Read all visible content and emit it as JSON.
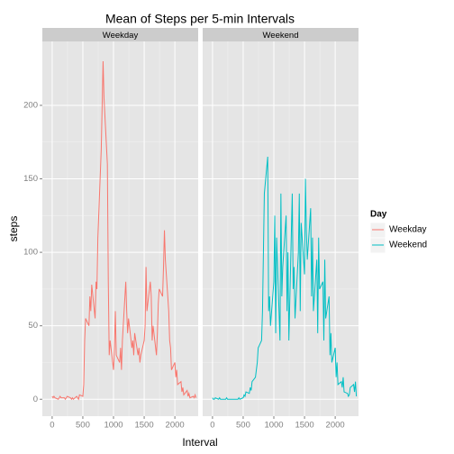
{
  "chart_data": {
    "type": "line",
    "title": "Mean of Steps per 5-min Intervals",
    "xlabel": "Interval",
    "ylabel": "steps",
    "legend_title": "Day",
    "legend": "right",
    "grid": true,
    "xlim": [
      -160,
      2380
    ],
    "ylim": [
      -11.5,
      243.5
    ],
    "xticks": [
      0,
      500,
      1000,
      1500,
      2000
    ],
    "yticks": [
      0,
      50,
      100,
      150,
      200
    ],
    "x": [
      0,
      15,
      30,
      45,
      100,
      115,
      130,
      145,
      200,
      215,
      230,
      245,
      300,
      315,
      330,
      345,
      400,
      415,
      430,
      445,
      500,
      515,
      530,
      545,
      600,
      615,
      630,
      645,
      700,
      715,
      730,
      745,
      800,
      815,
      830,
      845,
      900,
      915,
      930,
      945,
      1000,
      1015,
      1030,
      1045,
      1100,
      1115,
      1130,
      1145,
      1200,
      1215,
      1230,
      1245,
      1300,
      1315,
      1330,
      1345,
      1400,
      1415,
      1430,
      1445,
      1500,
      1515,
      1530,
      1545,
      1600,
      1615,
      1630,
      1645,
      1700,
      1715,
      1730,
      1745,
      1800,
      1815,
      1830,
      1845,
      1900,
      1915,
      1930,
      1945,
      2000,
      2015,
      2030,
      2045,
      2100,
      2115,
      2130,
      2145,
      2200,
      2215,
      2230,
      2245,
      2300,
      2315,
      2330,
      2345
    ],
    "series": [
      {
        "name": "Weekday",
        "color": "#f8766d",
        "values": [
          2,
          1,
          2,
          1,
          0,
          1,
          2,
          1,
          1,
          0,
          1,
          2,
          1,
          0,
          1,
          0,
          2,
          1,
          0,
          3,
          2,
          10,
          40,
          55,
          50,
          70,
          60,
          78,
          55,
          80,
          75,
          110,
          170,
          200,
          230,
          205,
          160,
          80,
          30,
          40,
          20,
          35,
          60,
          30,
          25,
          35,
          20,
          40,
          80,
          60,
          45,
          55,
          35,
          40,
          30,
          45,
          30,
          35,
          25,
          30,
          40,
          50,
          90,
          60,
          80,
          70,
          40,
          50,
          30,
          45,
          65,
          75,
          70,
          90,
          115,
          95,
          60,
          40,
          35,
          20,
          25,
          15,
          20,
          10,
          12,
          5,
          8,
          3,
          6,
          2,
          4,
          1,
          2,
          1,
          3,
          1
        ]
      },
      {
        "name": "Weekend",
        "color": "#00bfc4",
        "values": [
          1,
          0,
          0,
          1,
          0,
          1,
          0,
          0,
          0,
          0,
          1,
          0,
          0,
          0,
          0,
          0,
          0,
          0,
          1,
          0,
          1,
          3,
          2,
          5,
          4,
          8,
          6,
          12,
          15,
          20,
          25,
          35,
          40,
          60,
          100,
          140,
          165,
          60,
          70,
          50,
          80,
          125,
          45,
          110,
          40,
          140,
          70,
          90,
          125,
          60,
          100,
          40,
          140,
          75,
          90,
          55,
          100,
          140,
          60,
          120,
          85,
          150,
          115,
          95,
          130,
          70,
          110,
          60,
          95,
          45,
          110,
          75,
          80,
          40,
          95,
          55,
          70,
          30,
          45,
          25,
          35,
          15,
          25,
          10,
          12,
          8,
          15,
          5,
          4,
          2,
          3,
          8,
          10,
          5,
          12,
          2
        ]
      }
    ]
  }
}
